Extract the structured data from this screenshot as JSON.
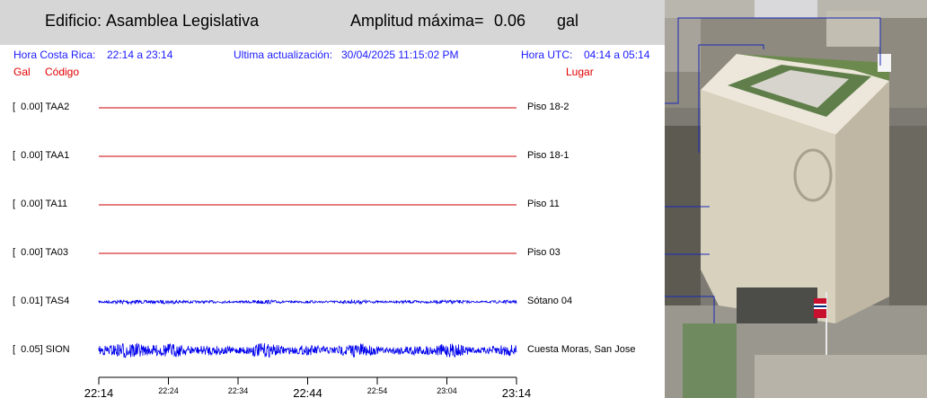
{
  "header": {
    "building_label": "Edificio:",
    "building_name": "Asamblea Legislativa",
    "amplitude_label": "Amplitud máxima=",
    "amplitude_value": "0.06",
    "amplitude_unit": "gal"
  },
  "info": {
    "local_label": "Hora Costa Rica:",
    "local_range": "22:14 a 23:14",
    "update_label": "Ultima actualización:",
    "update_value": "30/04/2025 11:15:02 PM",
    "utc_label": "Hora UTC:",
    "utc_range": "04:14 a 05:14"
  },
  "columns": {
    "gal": "Gal",
    "code": "Código",
    "place": "Lugar"
  },
  "colors": {
    "flat_trace": "#cc0000",
    "active_trace": "#0000ee",
    "header_bg": "#d6d6d6",
    "info_text": "#1a1aff",
    "column_header": "#e00000"
  },
  "chart_data": {
    "type": "line",
    "x_unit": "hora local",
    "xlim": [
      "22:14",
      "23:14"
    ],
    "x_ticks_major": [
      "22:14",
      "22:44",
      "23:14"
    ],
    "x_ticks_minor": [
      "22:24",
      "22:34",
      "22:54",
      "23:04"
    ],
    "series": [
      {
        "name": "TAA2",
        "peak_gal": 0.0,
        "peak_label": "[  0.00]",
        "place": "Piso 18-2",
        "style": "flat"
      },
      {
        "name": "TAA1",
        "peak_gal": 0.0,
        "peak_label": "[  0.00]",
        "place": "Piso 18-1",
        "style": "flat"
      },
      {
        "name": "TA11",
        "peak_gal": 0.0,
        "peak_label": "[  0.00]",
        "place": "Piso 11",
        "style": "flat"
      },
      {
        "name": "TA03",
        "peak_gal": 0.0,
        "peak_label": "[  0.00]",
        "place": "Piso 03",
        "style": "flat"
      },
      {
        "name": "TAS4",
        "peak_gal": 0.01,
        "peak_label": "[  0.01]",
        "place": "Sótano 04",
        "style": "noise"
      },
      {
        "name": "SION",
        "peak_gal": 0.05,
        "peak_label": "[  0.05]",
        "place": "Cuesta Moras, San Jose",
        "style": "noise"
      }
    ]
  },
  "photo": {
    "icon": "building-photo-icon"
  }
}
